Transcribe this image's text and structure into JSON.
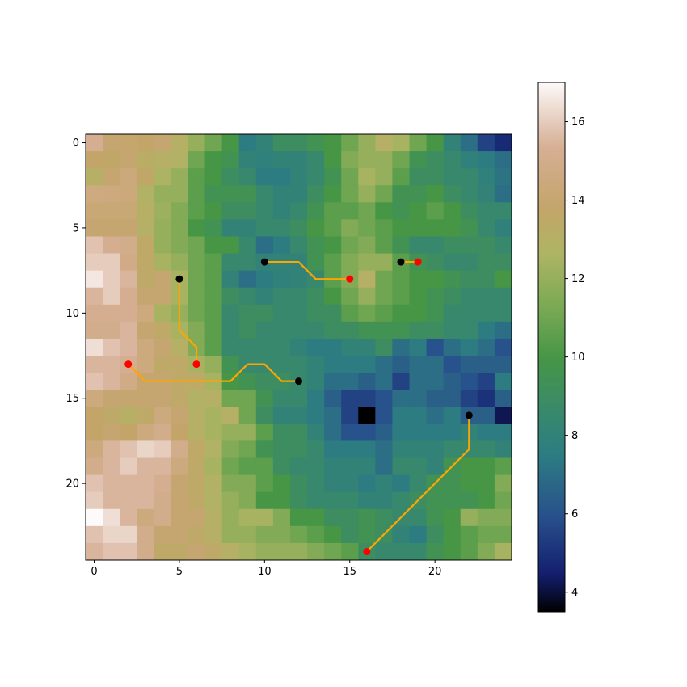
{
  "chart_data": {
    "type": "heatmap",
    "title": "",
    "xlabel": "",
    "ylabel": "",
    "grid": false,
    "colormap": "gist_earth",
    "xlim": [
      -0.5,
      24.5
    ],
    "ylim": [
      24.5,
      -0.5
    ],
    "x_ticks": [
      "0",
      "5",
      "10",
      "15",
      "20"
    ],
    "y_ticks": [
      "0",
      "5",
      "10",
      "15",
      "20"
    ],
    "colorbar": {
      "range": [
        3.5,
        17.0
      ],
      "ticks": [
        "4",
        "6",
        "8",
        "10",
        "12",
        "14",
        "16"
      ]
    },
    "grid_values": [
      [
        15.2,
        14.0,
        13.9,
        13.8,
        14.0,
        13.0,
        12.0,
        11.0,
        10.0,
        7.5,
        8.0,
        9.0,
        9.0,
        9.5,
        10.0,
        11.0,
        12.0,
        13.0,
        12.5,
        11.0,
        10.0,
        8.0,
        7.0,
        5.5,
        4.8
      ],
      [
        13.8,
        13.6,
        14.0,
        13.2,
        13.0,
        12.8,
        11.0,
        10.0,
        9.5,
        8.0,
        7.8,
        8.0,
        8.0,
        8.5,
        10.0,
        11.5,
        12.0,
        12.0,
        11.0,
        9.5,
        9.0,
        8.5,
        7.8,
        7.5,
        7.0
      ],
      [
        13.0,
        14.0,
        14.4,
        13.6,
        12.6,
        12.0,
        10.5,
        10.0,
        9.0,
        8.5,
        7.5,
        7.5,
        8.0,
        8.5,
        9.5,
        11.0,
        12.5,
        12.0,
        10.5,
        9.0,
        9.0,
        8.5,
        8.5,
        7.8,
        7.2
      ],
      [
        14.6,
        14.5,
        14.4,
        12.8,
        12.0,
        12.0,
        10.5,
        9.5,
        9.5,
        9.5,
        8.5,
        8.0,
        8.0,
        9.0,
        10.0,
        11.0,
        12.0,
        11.0,
        9.5,
        9.5,
        10.0,
        9.0,
        8.5,
        8.0,
        7.0
      ],
      [
        14.2,
        14.2,
        14.2,
        13.0,
        12.2,
        11.5,
        10.5,
        10.0,
        9.0,
        9.0,
        8.5,
        8.0,
        8.5,
        9.5,
        10.5,
        10.5,
        11.0,
        10.0,
        9.5,
        10.0,
        10.5,
        10.0,
        9.0,
        8.5,
        8.5
      ],
      [
        14.0,
        14.0,
        14.0,
        13.0,
        12.0,
        11.5,
        10.0,
        9.5,
        8.0,
        8.0,
        8.5,
        8.5,
        9.0,
        10.0,
        10.5,
        11.5,
        11.0,
        10.5,
        10.0,
        10.0,
        10.0,
        10.0,
        9.5,
        8.5,
        7.8
      ],
      [
        15.8,
        15.2,
        15.0,
        13.5,
        12.0,
        11.5,
        11.0,
        10.0,
        10.0,
        8.5,
        7.0,
        7.5,
        8.5,
        9.5,
        10.0,
        11.0,
        11.5,
        10.5,
        9.5,
        8.5,
        8.5,
        9.0,
        9.0,
        9.0,
        8.5
      ],
      [
        16.0,
        16.0,
        14.8,
        13.5,
        12.5,
        12.0,
        11.0,
        10.5,
        8.5,
        8.5,
        8.0,
        8.0,
        8.0,
        9.5,
        10.5,
        11.5,
        12.0,
        12.0,
        10.5,
        9.5,
        9.0,
        8.5,
        8.5,
        9.0,
        9.0
      ],
      [
        16.6,
        16.0,
        15.5,
        13.5,
        14.0,
        12.5,
        11.0,
        10.5,
        8.0,
        7.0,
        7.5,
        7.8,
        8.0,
        8.5,
        10.5,
        11.5,
        13.0,
        11.0,
        10.5,
        10.0,
        10.0,
        9.5,
        9.0,
        9.0,
        10.0
      ],
      [
        15.5,
        16.0,
        15.2,
        14.0,
        14.0,
        12.5,
        11.0,
        10.5,
        9.0,
        8.5,
        8.0,
        8.5,
        8.5,
        9.0,
        10.0,
        11.0,
        12.0,
        11.0,
        10.5,
        10.0,
        9.5,
        9.0,
        8.5,
        8.5,
        8.5
      ],
      [
        15.2,
        15.2,
        15.2,
        14.5,
        12.5,
        12.0,
        11.0,
        10.5,
        8.5,
        9.0,
        9.0,
        8.5,
        8.5,
        9.0,
        9.0,
        10.5,
        11.0,
        10.5,
        10.0,
        10.0,
        9.5,
        8.5,
        8.5,
        8.5,
        8.5
      ],
      [
        15.0,
        15.0,
        15.5,
        14.0,
        13.5,
        12.5,
        11.5,
        10.5,
        8.5,
        9.0,
        8.5,
        8.5,
        8.5,
        8.5,
        9.0,
        9.0,
        9.5,
        9.5,
        9.5,
        9.0,
        9.0,
        8.5,
        8.5,
        7.5,
        7.0
      ],
      [
        16.4,
        15.8,
        15.5,
        14.5,
        14.0,
        13.0,
        11.5,
        10.5,
        8.5,
        8.5,
        8.5,
        8.5,
        8.0,
        7.5,
        7.5,
        8.0,
        8.0,
        9.0,
        7.0,
        7.5,
        6.0,
        7.0,
        7.5,
        7.0,
        6.0
      ],
      [
        15.5,
        15.5,
        15.2,
        14.5,
        13.5,
        13.5,
        12.5,
        12.0,
        9.5,
        8.5,
        8.5,
        8.5,
        8.5,
        8.0,
        7.5,
        7.5,
        7.5,
        7.0,
        6.5,
        7.0,
        7.0,
        6.0,
        6.5,
        6.5,
        6.5
      ],
      [
        15.8,
        15.5,
        14.8,
        14.0,
        14.0,
        13.5,
        13.5,
        12.5,
        10.0,
        9.5,
        9.0,
        9.0,
        8.5,
        8.0,
        7.0,
        7.0,
        6.5,
        7.0,
        5.5,
        7.0,
        7.0,
        6.5,
        6.0,
        5.5,
        7.5
      ],
      [
        14.5,
        14.0,
        14.0,
        14.0,
        14.0,
        13.5,
        12.8,
        13.0,
        11.0,
        11.0,
        9.5,
        8.5,
        8.5,
        7.5,
        6.5,
        5.5,
        5.5,
        6.0,
        7.0,
        7.0,
        6.5,
        6.5,
        5.5,
        5.0,
        6.5
      ],
      [
        13.8,
        13.5,
        13.0,
        13.5,
        14.5,
        14.0,
        13.0,
        12.5,
        13.0,
        11.0,
        9.0,
        8.0,
        8.0,
        7.5,
        7.0,
        5.5,
        3.5,
        6.0,
        7.5,
        7.5,
        7.0,
        7.5,
        6.5,
        6.5,
        4.2
      ],
      [
        13.8,
        14.0,
        13.8,
        14.5,
        15.0,
        13.8,
        13.0,
        12.5,
        12.0,
        12.0,
        10.5,
        9.0,
        9.0,
        8.0,
        7.0,
        6.0,
        6.0,
        6.5,
        7.5,
        7.5,
        7.5,
        7.5,
        8.0,
        7.5,
        7.5
      ],
      [
        14.5,
        15.5,
        15.8,
        16.2,
        16.0,
        15.0,
        13.5,
        12.8,
        11.5,
        11.0,
        9.5,
        9.0,
        9.0,
        8.5,
        7.5,
        7.5,
        7.5,
        7.0,
        8.0,
        8.0,
        8.0,
        8.5,
        8.5,
        8.5,
        8.0
      ],
      [
        15.0,
        15.5,
        16.0,
        15.5,
        15.5,
        14.5,
        13.5,
        12.5,
        11.0,
        10.5,
        10.5,
        9.0,
        8.5,
        8.5,
        8.0,
        8.0,
        8.0,
        7.0,
        8.5,
        8.5,
        8.0,
        9.5,
        10.0,
        10.0,
        10.5
      ],
      [
        15.8,
        15.5,
        15.5,
        15.5,
        15.2,
        14.0,
        13.5,
        12.8,
        11.5,
        11.5,
        10.5,
        10.0,
        9.0,
        8.5,
        8.0,
        8.0,
        7.5,
        8.0,
        7.5,
        8.5,
        9.5,
        9.5,
        10.0,
        10.0,
        11.5
      ],
      [
        16.0,
        15.5,
        15.5,
        15.5,
        15.0,
        14.0,
        13.5,
        12.8,
        12.0,
        11.5,
        10.0,
        10.0,
        9.0,
        8.5,
        8.5,
        8.5,
        8.0,
        8.0,
        8.5,
        9.0,
        9.5,
        9.5,
        9.5,
        10.0,
        11.0
      ],
      [
        17.0,
        16.4,
        15.5,
        14.5,
        15.0,
        14.0,
        14.0,
        13.0,
        12.0,
        12.5,
        12.5,
        11.5,
        10.0,
        10.0,
        9.0,
        9.0,
        9.5,
        9.0,
        8.5,
        8.5,
        9.5,
        10.0,
        12.0,
        11.5,
        11.5
      ],
      [
        15.8,
        16.2,
        16.2,
        15.0,
        14.0,
        14.0,
        13.5,
        13.0,
        12.0,
        12.0,
        11.5,
        11.5,
        11.0,
        10.5,
        10.0,
        9.0,
        9.5,
        9.0,
        8.0,
        7.5,
        9.0,
        10.0,
        10.5,
        11.0,
        11.0
      ],
      [
        15.5,
        15.8,
        15.8,
        15.0,
        13.5,
        13.5,
        14.0,
        13.5,
        13.0,
        12.5,
        12.0,
        12.0,
        12.0,
        11.5,
        11.0,
        10.5,
        9.0,
        8.5,
        8.5,
        8.5,
        9.5,
        10.0,
        10.5,
        11.5,
        12.5
      ]
    ],
    "paths": [
      {
        "points": [
          [
            10,
            7
          ],
          [
            12,
            7
          ],
          [
            13,
            8
          ],
          [
            15,
            8
          ]
        ]
      },
      {
        "points": [
          [
            18,
            7
          ],
          [
            19,
            7
          ]
        ]
      },
      {
        "points": [
          [
            5,
            8
          ],
          [
            5,
            11
          ],
          [
            6,
            12
          ],
          [
            6,
            13
          ]
        ]
      },
      {
        "points": [
          [
            12,
            14
          ],
          [
            11,
            14
          ],
          [
            10,
            13
          ],
          [
            9,
            13
          ],
          [
            8,
            14
          ],
          [
            3,
            14
          ],
          [
            2,
            13
          ]
        ]
      },
      {
        "points": [
          [
            22,
            16
          ],
          [
            22,
            18
          ],
          [
            16,
            24
          ]
        ]
      }
    ],
    "start_points": [
      [
        10,
        7
      ],
      [
        18,
        7
      ],
      [
        5,
        8
      ],
      [
        12,
        14
      ],
      [
        22,
        16
      ]
    ],
    "end_points": [
      [
        15,
        8
      ],
      [
        19,
        7
      ],
      [
        6,
        13
      ],
      [
        2,
        13
      ],
      [
        16,
        24
      ]
    ],
    "colors": {
      "path": "#FFA500",
      "start_marker": "#000000",
      "end_marker": "#FF0000"
    }
  }
}
